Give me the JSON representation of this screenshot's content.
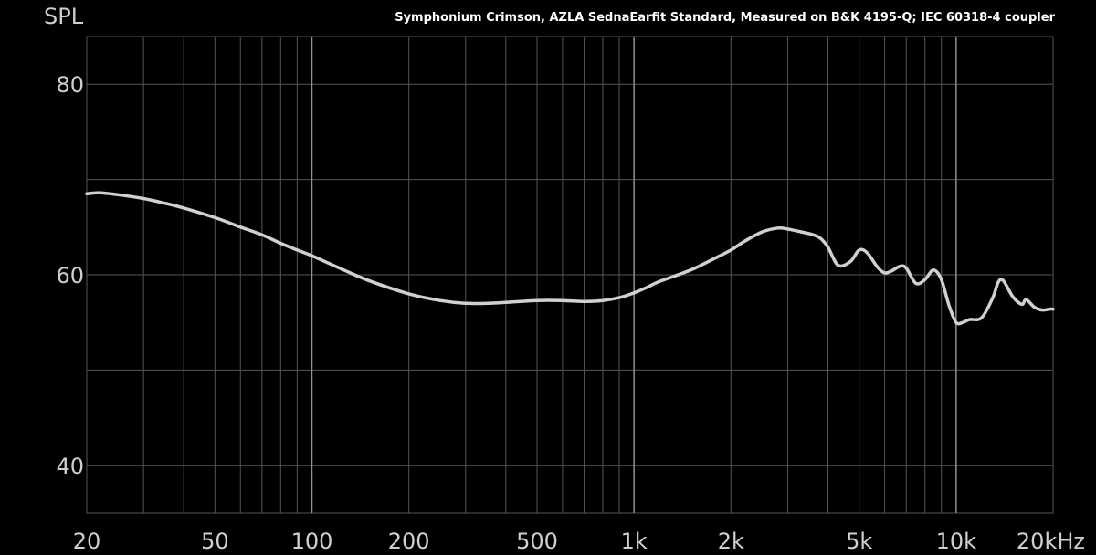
{
  "chart_data": {
    "type": "line",
    "title": "Symphonium Crimson, AZLA SednaEarfit Standard, Measured on B&K 4195-Q; IEC 60318-4 coupler",
    "ylabel": "SPL",
    "xlabel": "",
    "x_scale": "log",
    "xlim": [
      20,
      20000
    ],
    "ylim": [
      35,
      85
    ],
    "grid": true,
    "x_ticks": [
      {
        "value": 20,
        "label": "20"
      },
      {
        "value": 50,
        "label": "50"
      },
      {
        "value": 100,
        "label": "100"
      },
      {
        "value": 200,
        "label": "200"
      },
      {
        "value": 500,
        "label": "500"
      },
      {
        "value": 1000,
        "label": "1k"
      },
      {
        "value": 2000,
        "label": "2k"
      },
      {
        "value": 5000,
        "label": "5k"
      },
      {
        "value": 10000,
        "label": "10k"
      },
      {
        "value": 20000,
        "label": "20kHz"
      }
    ],
    "y_ticks": [
      {
        "value": 80,
        "label": "80"
      },
      {
        "value": 60,
        "label": "60"
      },
      {
        "value": 40,
        "label": "40"
      }
    ],
    "colors": {
      "background": "#000000",
      "line": "#d0d0d0",
      "grid": "#555555",
      "grid_major": "#909090",
      "text": "#cfcfcf"
    },
    "series": [
      {
        "x": [
          20,
          22,
          25,
          30,
          35,
          40,
          50,
          60,
          70,
          80,
          90,
          100,
          120,
          150,
          200,
          250,
          300,
          350,
          400,
          500,
          600,
          700,
          800,
          900,
          1000,
          1100,
          1200,
          1500,
          1800,
          2000,
          2200,
          2500,
          2800,
          3000,
          3300,
          3600,
          3800,
          4000,
          4300,
          4700,
          5000,
          5300,
          5700,
          6000,
          6300,
          6700,
          7000,
          7500,
          8000,
          8500,
          9000,
          9500,
          10000,
          10500,
          11000,
          12000,
          13000,
          13500,
          14000,
          15000,
          16000,
          16500,
          17500,
          18500,
          19500,
          20000
        ],
        "y": [
          68.5,
          68.6,
          68.4,
          68.0,
          67.5,
          67.0,
          66.0,
          65.0,
          64.2,
          63.3,
          62.6,
          62.0,
          60.8,
          59.4,
          58.0,
          57.3,
          57.0,
          57.0,
          57.1,
          57.3,
          57.3,
          57.2,
          57.3,
          57.6,
          58.1,
          58.7,
          59.3,
          60.5,
          61.8,
          62.6,
          63.5,
          64.5,
          64.9,
          64.8,
          64.5,
          64.2,
          63.8,
          62.9,
          61.0,
          61.4,
          62.6,
          62.3,
          60.8,
          60.2,
          60.4,
          60.9,
          60.7,
          59.1,
          59.5,
          60.5,
          59.5,
          56.8,
          55.0,
          55.0,
          55.3,
          55.5,
          57.6,
          59.2,
          59.4,
          57.7,
          56.9,
          57.4,
          56.6,
          56.3,
          56.4,
          56.4
        ]
      }
    ]
  }
}
